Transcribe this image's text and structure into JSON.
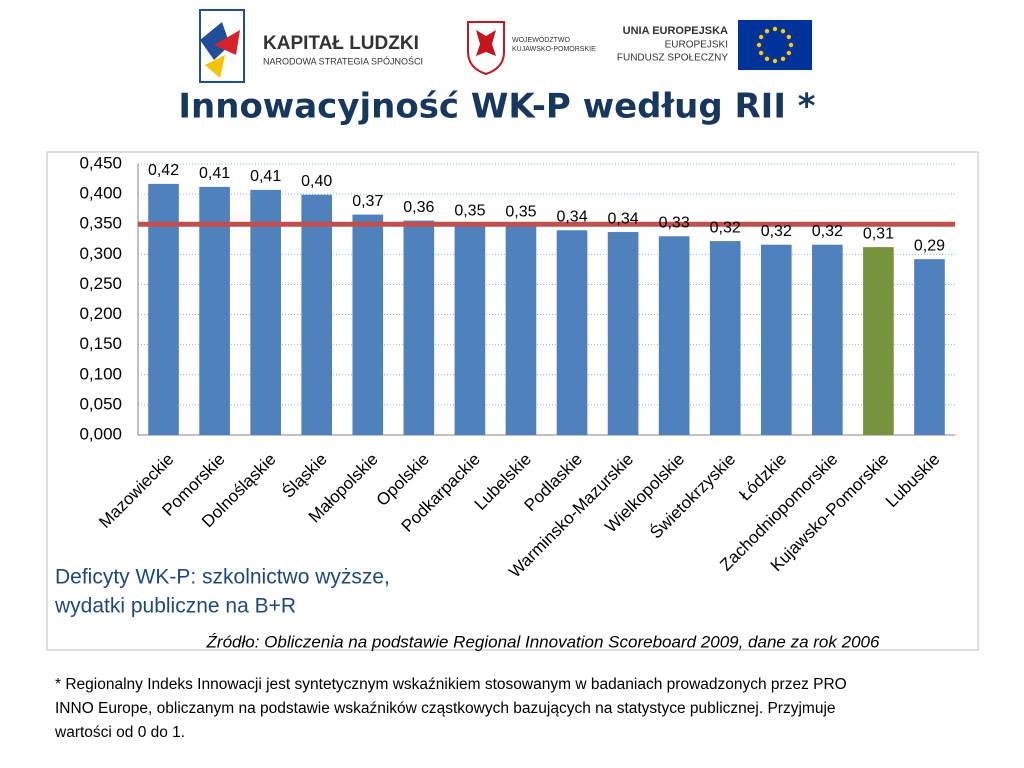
{
  "header": {
    "logo_left": {
      "name": "KAPITAŁ LUDZKI",
      "subtitle": "NARODOWA STRATEGIA SPÓJNOŚCI"
    },
    "logo_middle": {
      "line1": "WOJEWÓDZTWO",
      "line2": "KUJAWSKO-POMORSKIE"
    },
    "logo_right": {
      "line1": "UNIA EUROPEJSKA",
      "line2": "EUROPEJSKI",
      "line3": "FUNDUSZ SPOŁECZNY"
    }
  },
  "title": "Innowacyjność WK-P według RII *",
  "chart_data": {
    "type": "bar",
    "categories": [
      "Mazowieckie",
      "Pomorskie",
      "Dolnośląskie",
      "Śląskie",
      "Małopolskie",
      "Opolskie",
      "Podkarpackie",
      "Lubelskie",
      "Podlaskie",
      "Warminsko-Mazurskie",
      "Wielkopolskie",
      "Świetokrzyskie",
      "Łódzkie",
      "Zachodniopomorskie",
      "Kujawsko-Pomorskie",
      "Lubuskie"
    ],
    "values": [
      0.417,
      0.412,
      0.407,
      0.399,
      0.366,
      0.356,
      0.35,
      0.348,
      0.34,
      0.337,
      0.33,
      0.322,
      0.316,
      0.316,
      0.312,
      0.292
    ],
    "value_labels": [
      "0,42",
      "0,41",
      "0,41",
      "0,40",
      "0,37",
      "0,36",
      "0,35",
      "0,35",
      "0,34",
      "0,34",
      "0,33",
      "0,32",
      "0,32",
      "0,32",
      "0,31",
      "0,29"
    ],
    "colors": [
      "#4f81bd",
      "#4f81bd",
      "#4f81bd",
      "#4f81bd",
      "#4f81bd",
      "#4f81bd",
      "#4f81bd",
      "#4f81bd",
      "#4f81bd",
      "#4f81bd",
      "#4f81bd",
      "#4f81bd",
      "#4f81bd",
      "#4f81bd",
      "#77933c",
      "#4f81bd"
    ],
    "ylim": [
      0,
      0.45
    ],
    "yticks": [
      {
        "value": 0,
        "label": "0,000"
      },
      {
        "value": 0.05,
        "label": "0,050"
      },
      {
        "value": 0.1,
        "label": "0,100"
      },
      {
        "value": 0.15,
        "label": "0,150"
      },
      {
        "value": 0.2,
        "label": "0,200"
      },
      {
        "value": 0.25,
        "label": "0,250"
      },
      {
        "value": 0.3,
        "label": "0,300"
      },
      {
        "value": 0.35,
        "label": "0,350"
      },
      {
        "value": 0.4,
        "label": "0,400"
      },
      {
        "value": 0.45,
        "label": "0,450"
      }
    ],
    "grid": true,
    "reference_line": {
      "value": 0.35,
      "color": "#c0504d"
    }
  },
  "annotation": [
    "Deficyty WK-P: szkolnictwo wyższe,",
    "wydatki publiczne na B+R"
  ],
  "source": "Źródło: Obliczenia na podstawie Regional Innovation Scoreboard  2009, dane za rok 2006",
  "footnote": [
    "* Regionalny Indeks Innowacji jest syntetycznym wskaźnikiem stosowanym w badaniach prowadzonych przez PRO",
    "INNO Europe,  obliczanym na podstawie wskaźników cząstkowych bazujących na statystyce publicznej. Przyjmuje",
    "wartości od 0 do 1."
  ]
}
